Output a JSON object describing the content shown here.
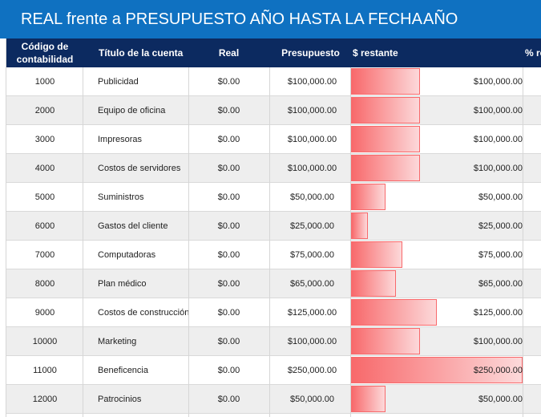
{
  "title": {
    "main": "REAL frente a PRESUPUESTO AÑO HASTA LA FECHA",
    "period": "AÑO"
  },
  "columns": {
    "code": "Código de contabilidad",
    "account": "Título de la cuenta",
    "actual": "Real",
    "budget": "Presupuesto",
    "remaining": "$ restante",
    "pct_remaining": "% re"
  },
  "colors": {
    "title_bar": "#0f71c1",
    "header": "#0c2a60",
    "databar": "#f8696b"
  },
  "rows": [
    {
      "code": "1000",
      "account": "Publicidad",
      "actual": "$0.00",
      "budget": "$100,000.00",
      "remaining": "$100,000.00",
      "remaining_value": 100000
    },
    {
      "code": "2000",
      "account": "Equipo de oficina",
      "actual": "$0.00",
      "budget": "$100,000.00",
      "remaining": "$100,000.00",
      "remaining_value": 100000
    },
    {
      "code": "3000",
      "account": "Impresoras",
      "actual": "$0.00",
      "budget": "$100,000.00",
      "remaining": "$100,000.00",
      "remaining_value": 100000
    },
    {
      "code": "4000",
      "account": "Costos de servidores",
      "actual": "$0.00",
      "budget": "$100,000.00",
      "remaining": "$100,000.00",
      "remaining_value": 100000
    },
    {
      "code": "5000",
      "account": "Suministros",
      "actual": "$0.00",
      "budget": "$50,000.00",
      "remaining": "$50,000.00",
      "remaining_value": 50000
    },
    {
      "code": "6000",
      "account": "Gastos del cliente",
      "actual": "$0.00",
      "budget": "$25,000.00",
      "remaining": "$25,000.00",
      "remaining_value": 25000
    },
    {
      "code": "7000",
      "account": "Computadoras",
      "actual": "$0.00",
      "budget": "$75,000.00",
      "remaining": "$75,000.00",
      "remaining_value": 75000
    },
    {
      "code": "8000",
      "account": "Plan médico",
      "actual": "$0.00",
      "budget": "$65,000.00",
      "remaining": "$65,000.00",
      "remaining_value": 65000
    },
    {
      "code": "9000",
      "account": "Costos de construcción",
      "actual": "$0.00",
      "budget": "$125,000.00",
      "remaining": "$125,000.00",
      "remaining_value": 125000
    },
    {
      "code": "10000",
      "account": "Marketing",
      "actual": "$0.00",
      "budget": "$100,000.00",
      "remaining": "$100,000.00",
      "remaining_value": 100000
    },
    {
      "code": "11000",
      "account": "Beneficencia",
      "actual": "$0.00",
      "budget": "$250,000.00",
      "remaining": "$250,000.00",
      "remaining_value": 250000
    },
    {
      "code": "12000",
      "account": "Patrocinios",
      "actual": "$0.00",
      "budget": "$50,000.00",
      "remaining": "$50,000.00",
      "remaining_value": 50000
    }
  ]
}
